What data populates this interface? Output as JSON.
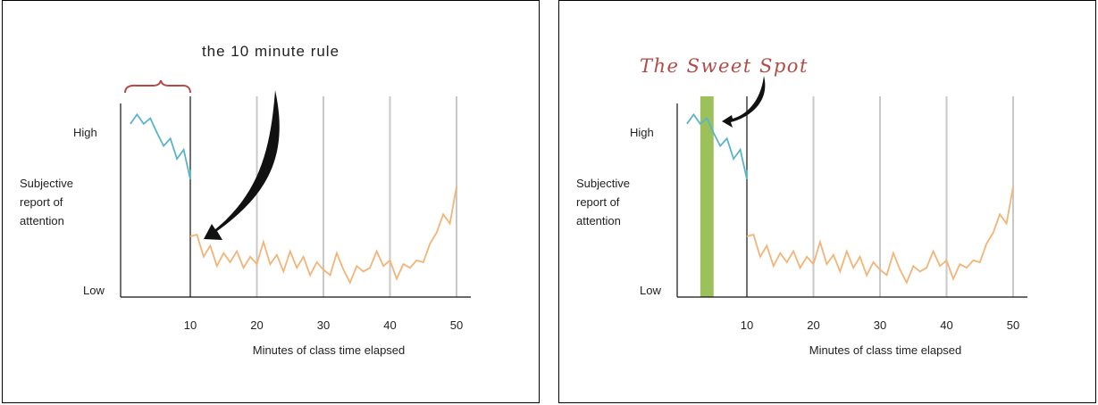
{
  "chart_data": [
    {
      "type": "line",
      "title": "the 10 minute rule",
      "xlabel": "Minutes of class time elapsed",
      "ylabel": "Subjective report of attention",
      "ylabel_lines": [
        "Subjective",
        "report of",
        "attention"
      ],
      "y_tick_labels": {
        "high": "High",
        "low": "Low"
      },
      "x_ticks": [
        10,
        20,
        30,
        40,
        50
      ],
      "xlim": [
        0,
        52
      ],
      "ylim": [
        0,
        100
      ],
      "grid": "vertical at 20, 30, 40, 50",
      "marker_line_x": 10,
      "annotations": [
        "brace over minutes 0-10",
        "curved arrow pointing to minute 10"
      ],
      "series": [
        {
          "color": "#5ab4c8",
          "x": [
            1,
            2,
            3,
            4,
            5,
            6,
            7,
            8,
            9,
            10,
            10
          ],
          "y": [
            89,
            94,
            89,
            92,
            84,
            77,
            81,
            70,
            75,
            59,
            64
          ]
        },
        {
          "color": "#f2b477",
          "x": [
            10,
            11,
            12,
            13,
            14,
            15,
            16,
            17,
            18,
            19,
            20,
            21,
            22,
            23,
            24,
            25,
            26,
            27,
            28,
            29,
            30,
            31,
            32,
            33,
            34,
            35,
            36,
            37,
            38,
            39,
            40,
            41,
            42,
            43,
            44,
            45,
            46,
            47,
            48,
            49,
            50
          ],
          "y": [
            28,
            29,
            17,
            23,
            12,
            19,
            14,
            20,
            11,
            17,
            13,
            25,
            13,
            18,
            9,
            20,
            11,
            17,
            7,
            14,
            10,
            7,
            19,
            10,
            3,
            12,
            9,
            11,
            20,
            12,
            15,
            5,
            13,
            11,
            15,
            14,
            24,
            30,
            40,
            35,
            55
          ]
        }
      ]
    },
    {
      "type": "line",
      "title": "The Sweet Spot",
      "xlabel": "Minutes of class time elapsed",
      "ylabel": "Subjective report of attention",
      "ylabel_lines": [
        "Subjective",
        "report of",
        "attention"
      ],
      "y_tick_labels": {
        "high": "High",
        "low": "Low"
      },
      "x_ticks": [
        10,
        20,
        30,
        40,
        50
      ],
      "xlim": [
        0,
        52
      ],
      "ylim": [
        0,
        100
      ],
      "grid": "vertical at 20, 30, 40, 50",
      "marker_line_x": 10,
      "highlight_band": {
        "from": 3,
        "to": 5,
        "color": "#9cc15b"
      },
      "annotations": [
        "curved arrow pointing to the highlighted band"
      ],
      "series": [
        {
          "color": "#5ab4c8",
          "x": [
            1,
            2,
            3,
            4,
            5,
            6,
            7,
            8,
            9,
            10,
            10
          ],
          "y": [
            89,
            94,
            89,
            92,
            84,
            77,
            81,
            70,
            75,
            59,
            64
          ]
        },
        {
          "color": "#f2b477",
          "x": [
            10,
            11,
            12,
            13,
            14,
            15,
            16,
            17,
            18,
            19,
            20,
            21,
            22,
            23,
            24,
            25,
            26,
            27,
            28,
            29,
            30,
            31,
            32,
            33,
            34,
            35,
            36,
            37,
            38,
            39,
            40,
            41,
            42,
            43,
            44,
            45,
            46,
            47,
            48,
            49,
            50
          ],
          "y": [
            28,
            29,
            17,
            23,
            12,
            19,
            14,
            20,
            11,
            17,
            13,
            25,
            13,
            18,
            9,
            20,
            11,
            17,
            7,
            14,
            10,
            7,
            19,
            10,
            3,
            12,
            9,
            11,
            20,
            12,
            15,
            5,
            13,
            11,
            15,
            14,
            24,
            30,
            40,
            35,
            55
          ]
        }
      ]
    }
  ]
}
